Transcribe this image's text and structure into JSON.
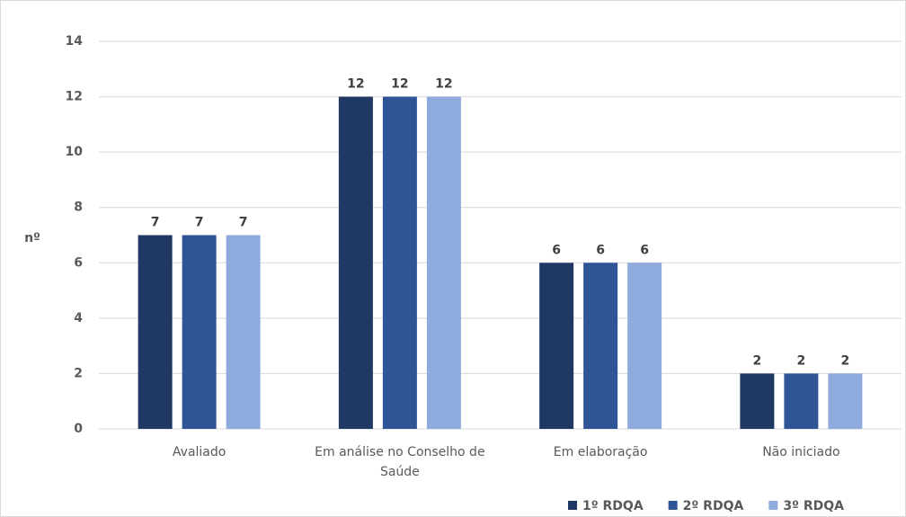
{
  "chart_data": {
    "type": "bar",
    "y_label": "nº",
    "categories": [
      "Avaliado",
      "Em análise no Conselho de Saúde",
      "Em elaboração",
      "Não iniciado"
    ],
    "series": [
      {
        "name": "1º RDQA",
        "color": "#1f3864",
        "values": [
          7,
          12,
          6,
          2
        ]
      },
      {
        "name": "2º RDQA",
        "color": "#2f5597",
        "values": [
          7,
          12,
          6,
          2
        ]
      },
      {
        "name": "3º RDQA",
        "color": "#8faadc",
        "values": [
          7,
          12,
          6,
          2
        ]
      }
    ],
    "ylim": [
      0,
      14
    ],
    "yticks": [
      0,
      2,
      4,
      6,
      8,
      10,
      12,
      14
    ],
    "grid": true,
    "legend": "bottom-right"
  }
}
